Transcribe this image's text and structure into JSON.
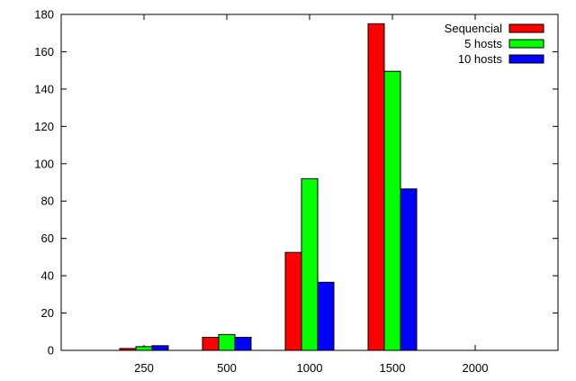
{
  "chart_data": {
    "type": "bar",
    "categories": [
      "250",
      "500",
      "1000",
      "1500",
      "2000"
    ],
    "series": [
      {
        "name": "Sequencial",
        "color": "#ff0000",
        "values": [
          1,
          7,
          52.5,
          175,
          0
        ]
      },
      {
        "name": "5 hosts",
        "color": "#00ff00",
        "values": [
          2,
          8.5,
          92,
          149.5,
          0
        ]
      },
      {
        "name": "10 hosts",
        "color": "#0000ff",
        "values": [
          2.5,
          7,
          36.5,
          86.5,
          0
        ]
      }
    ],
    "yticks": [
      "0",
      "20",
      "40",
      "60",
      "80",
      "100",
      "120",
      "140",
      "160",
      "180"
    ],
    "ylim": [
      0,
      180
    ],
    "legend_position": "top-right",
    "grid": false
  }
}
